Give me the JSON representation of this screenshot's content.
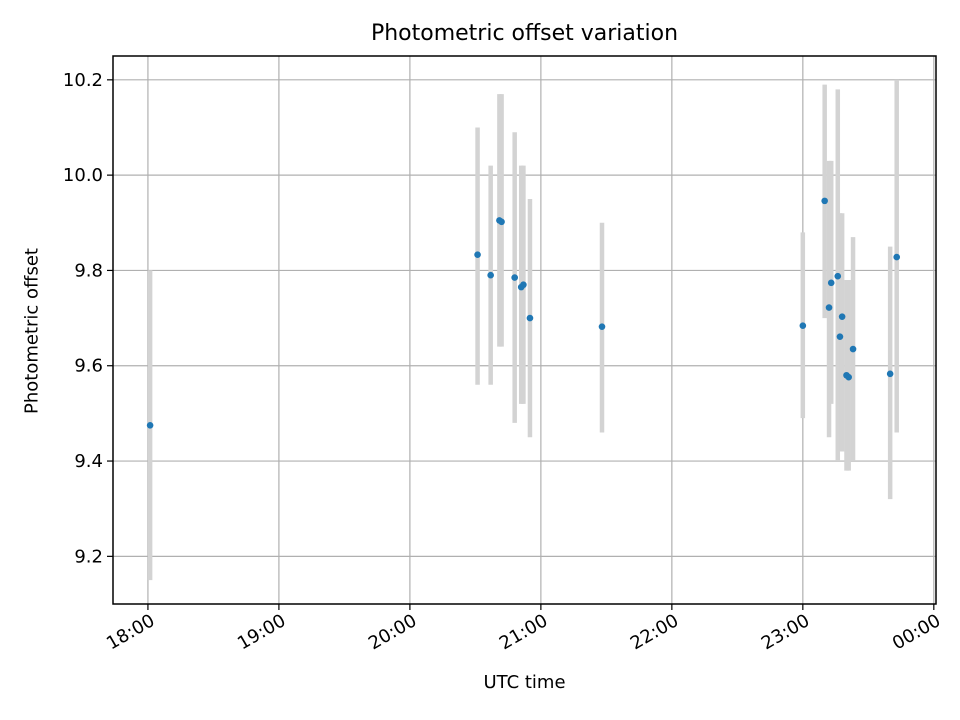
{
  "chart_data": {
    "type": "scatter",
    "title": "Photometric offset variation",
    "xlabel": "UTC time",
    "ylabel": "Photometric offset",
    "xlim": [
      "17:44",
      "00:01"
    ],
    "ylim": [
      9.1,
      10.25
    ],
    "xticks": [
      "18:00",
      "19:00",
      "20:00",
      "21:00",
      "22:00",
      "23:00",
      "00:00"
    ],
    "yticks": [
      9.2,
      9.4,
      9.6,
      9.8,
      10.0,
      10.2
    ],
    "grid": true,
    "legend": "none",
    "colors": {
      "point": "#1f77b4",
      "errorbar": "#d3d3d3",
      "grid": "#b0b0b0"
    },
    "points": [
      {
        "x": "18:01",
        "y": 9.475,
        "ylow": 9.15,
        "yhigh": 9.8
      },
      {
        "x": "20:31",
        "y": 9.833,
        "ylow": 9.56,
        "yhigh": 10.1
      },
      {
        "x": "20:37",
        "y": 9.79,
        "ylow": 9.56,
        "yhigh": 10.02
      },
      {
        "x": "20:41",
        "y": 9.905,
        "ylow": 9.64,
        "yhigh": 10.17
      },
      {
        "x": "20:42",
        "y": 9.902,
        "ylow": 9.64,
        "yhigh": 10.17
      },
      {
        "x": "20:48",
        "y": 9.785,
        "ylow": 9.48,
        "yhigh": 10.09
      },
      {
        "x": "20:51",
        "y": 9.765,
        "ylow": 9.52,
        "yhigh": 10.02
      },
      {
        "x": "20:52",
        "y": 9.77,
        "ylow": 9.52,
        "yhigh": 10.02
      },
      {
        "x": "20:55",
        "y": 9.7,
        "ylow": 9.45,
        "yhigh": 9.95
      },
      {
        "x": "21:28",
        "y": 9.682,
        "ylow": 9.46,
        "yhigh": 9.9
      },
      {
        "x": "23:00",
        "y": 9.684,
        "ylow": 9.49,
        "yhigh": 9.88
      },
      {
        "x": "23:10",
        "y": 9.946,
        "ylow": 9.7,
        "yhigh": 10.19
      },
      {
        "x": "23:12",
        "y": 9.722,
        "ylow": 9.45,
        "yhigh": 10.03
      },
      {
        "x": "23:13",
        "y": 9.774,
        "ylow": 9.52,
        "yhigh": 10.03
      },
      {
        "x": "23:16",
        "y": 9.788,
        "ylow": 9.4,
        "yhigh": 10.18
      },
      {
        "x": "23:17",
        "y": 9.661,
        "ylow": 9.42,
        "yhigh": 9.92
      },
      {
        "x": "23:18",
        "y": 9.703,
        "ylow": 9.42,
        "yhigh": 9.92
      },
      {
        "x": "23:20",
        "y": 9.58,
        "ylow": 9.38,
        "yhigh": 9.78
      },
      {
        "x": "23:21",
        "y": 9.576,
        "ylow": 9.38,
        "yhigh": 9.78
      },
      {
        "x": "23:23",
        "y": 9.635,
        "ylow": 9.4,
        "yhigh": 9.87
      },
      {
        "x": "23:40",
        "y": 9.583,
        "ylow": 9.32,
        "yhigh": 9.85
      },
      {
        "x": "23:43",
        "y": 9.828,
        "ylow": 9.46,
        "yhigh": 10.2
      }
    ]
  }
}
